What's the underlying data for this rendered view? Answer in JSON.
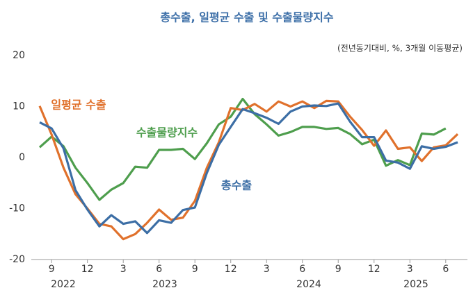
{
  "chart_data": {
    "type": "line",
    "title": "총수출, 일평균 수출 및 수출물량지수",
    "subtitle": "(전년동기대비, %, 3개월 이동평균)",
    "categories": [
      null,
      "9",
      null,
      null,
      "12",
      null,
      null,
      "3",
      null,
      null,
      "6",
      null,
      null,
      "9",
      null,
      null,
      "12",
      null,
      null,
      "3",
      null,
      null,
      "6",
      null,
      null,
      "9",
      null,
      null,
      "12",
      null,
      null,
      "3",
      null,
      null,
      "6",
      null
    ],
    "years": [
      "2022",
      "2023",
      "2024",
      "2025"
    ],
    "ylim": [
      -20,
      20
    ],
    "yticks": [
      -20,
      -10,
      0,
      10,
      20
    ],
    "series": [
      {
        "name": "총수출",
        "color": "#3c6ea5",
        "values": [
          6.9,
          5.7,
          1.8,
          -6.4,
          -10.2,
          -13.5,
          -11.3,
          -13,
          -12.5,
          -14.8,
          -12.3,
          -12.8,
          -10.3,
          -9.8,
          -3,
          2.5,
          6,
          9.5,
          8.7,
          7.8,
          6.6,
          9,
          10,
          10.2,
          10.1,
          10.6,
          7,
          4,
          4,
          -0.6,
          -1,
          -2.2,
          2.2,
          1.7,
          2.1,
          3
        ]
      },
      {
        "name": "일평균 수출",
        "color": "#e0712c",
        "values": [
          10.1,
          4.5,
          -2,
          -7.2,
          -10,
          -13,
          -13.5,
          -16,
          -15,
          -12.8,
          -10.2,
          -12.2,
          -11.8,
          -8.5,
          -2,
          3,
          9.7,
          9.3,
          10.5,
          9,
          11,
          10,
          11,
          9.7,
          11.1,
          11,
          8,
          5.4,
          2.3,
          5.3,
          1.7,
          2,
          -0.7,
          2,
          2.4,
          4.6
        ]
      },
      {
        "name": "수출물량지수",
        "color": "#4e9e4d",
        "values": [
          2,
          4.1,
          2.2,
          -2,
          -5,
          -8.3,
          -6.3,
          -5,
          -1.8,
          -2,
          1.5,
          1.5,
          1.7,
          -0.3,
          2.8,
          6.5,
          8,
          11.5,
          8.5,
          6.5,
          4.3,
          5,
          6,
          6,
          5.6,
          5.8,
          4.6,
          2.6,
          3.5,
          -1.6,
          -0.5,
          -1.5,
          4.7,
          4.5,
          5.7,
          null
        ]
      }
    ]
  }
}
